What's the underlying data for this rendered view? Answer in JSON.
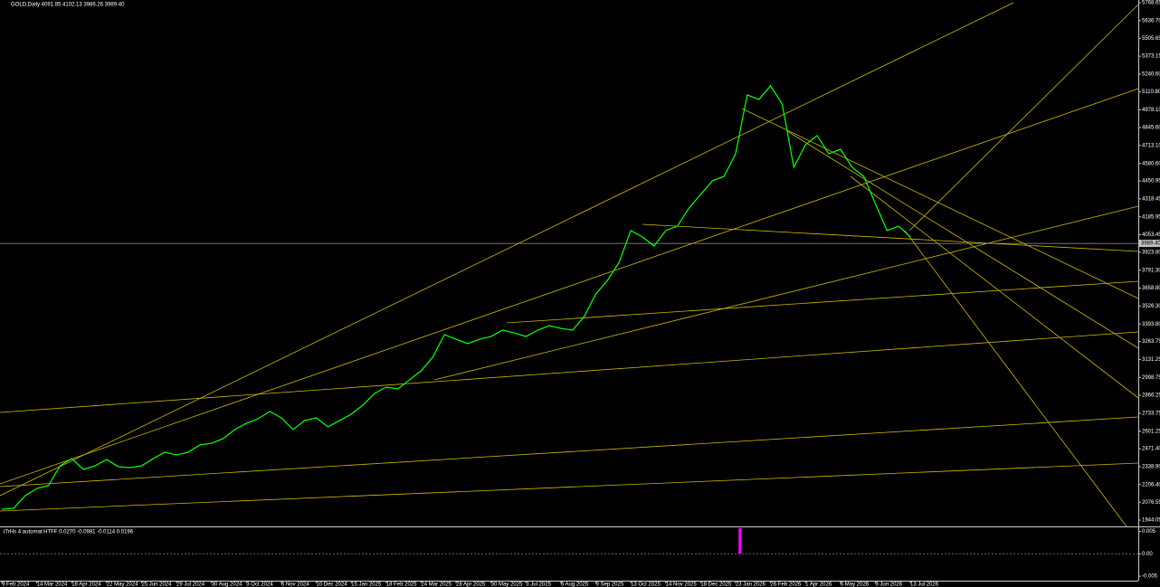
{
  "chart_data": [
    {
      "type": "line",
      "title": "GOLD,Daily  4091.85 4102.13 3986.26 3989.40",
      "color": "#00ff00",
      "xlim": [
        -1.24,
        780.6
      ],
      "ylim": [
        1897.23,
        5788.71
      ],
      "x": [
        0,
        8,
        16,
        24,
        32,
        40,
        48,
        56,
        64,
        72,
        80,
        88,
        96,
        104,
        112,
        120,
        128,
        136,
        144,
        152,
        160,
        168,
        176,
        184,
        192,
        200,
        208,
        216,
        224,
        232,
        240,
        248,
        256,
        264,
        272,
        280,
        288,
        296,
        304,
        312,
        320,
        328,
        336,
        344,
        352,
        360,
        368,
        376,
        384,
        392,
        400,
        408,
        416,
        424,
        432,
        440,
        448,
        456,
        464,
        472,
        480,
        488,
        496,
        504,
        512,
        520,
        528,
        536,
        544,
        552,
        560,
        568,
        576,
        584,
        592,
        600,
        608,
        616,
        624
      ],
      "values": [
        2024,
        2031,
        2124,
        2178,
        2198,
        2345,
        2399,
        2318,
        2345,
        2392,
        2338,
        2332,
        2345,
        2399,
        2446,
        2425,
        2446,
        2499,
        2512,
        2546,
        2613,
        2660,
        2693,
        2747,
        2700,
        2613,
        2680,
        2700,
        2633,
        2680,
        2727,
        2794,
        2880,
        2927,
        2914,
        2981,
        3048,
        3148,
        3315,
        3281,
        3248,
        3281,
        3301,
        3348,
        3328,
        3301,
        3348,
        3381,
        3361,
        3348,
        3448,
        3616,
        3716,
        3850,
        4084,
        4037,
        3970,
        4084,
        4117,
        4251,
        4351,
        4451,
        4485,
        4652,
        5087,
        5053,
        5154,
        5020,
        4552,
        4719,
        4786,
        4652,
        4686,
        4552,
        4485,
        4284,
        4084,
        4117,
        4037
      ],
      "current_price": {
        "value": 3989.4,
        "label": "3989.40"
      },
      "yticks": [
        5768.65,
        {
          "value": 5636.7,
          "label": "5636.70"
        },
        5505.65,
        5373.15,
        {
          "value": 5240.6,
          "label": "5240.60"
        },
        {
          "value": 5110.8,
          "label": "5110.80"
        },
        {
          "value": 4978.1,
          "label": "4978.10"
        },
        {
          "value": 4845.6,
          "label": "4845.60"
        },
        {
          "value": 4713.1,
          "label": "4713.10"
        },
        {
          "value": 4580.6,
          "label": "4580.60"
        },
        4450.95,
        4318.45,
        4185.95,
        4053.45,
        {
          "value": 3923.8,
          "label": "3923.80"
        },
        {
          "value": 3791.3,
          "label": "3791.30"
        },
        {
          "value": 3658.8,
          "label": "3658.80"
        },
        {
          "value": 3526.3,
          "label": "3526.30"
        },
        {
          "value": 3393.8,
          "label": "3393.80"
        },
        3263.75,
        3131.25,
        2998.75,
        2866.25,
        2733.75,
        2601.25,
        {
          "value": 2471.4,
          "label": "2471.40"
        },
        {
          "value": 2338.9,
          "label": "2338.90"
        },
        {
          "value": 2206.4,
          "label": "2206.40"
        },
        2076.55,
        1944.05
      ],
      "xticks": [
        {
          "value": 0,
          "label": "9 Feb 2024"
        },
        {
          "value": 24,
          "label": "14 Mar 2024"
        },
        {
          "value": 48,
          "label": "18 Apr 2024"
        },
        {
          "value": 72,
          "label": "22 May 2024"
        },
        {
          "value": 96,
          "label": "25 Jun 2024"
        },
        {
          "value": 120,
          "label": "29 Jul 2024"
        },
        {
          "value": 144,
          "label": "30 Aug 2024"
        },
        {
          "value": 168,
          "label": "3 Oct 2024"
        },
        {
          "value": 192,
          "label": "6 Nov 2024"
        },
        {
          "value": 216,
          "label": "10 Dec 2024"
        },
        {
          "value": 240,
          "label": "15 Jan 2025"
        },
        {
          "value": 264,
          "label": "18 Feb 2025"
        },
        {
          "value": 288,
          "label": "24 Mar 2025"
        },
        {
          "value": 312,
          "label": "28 Apr 2025"
        },
        {
          "value": 336,
          "label": "30 May 2025"
        },
        {
          "value": 360,
          "label": "3 Jul 2025"
        },
        {
          "value": 384,
          "label": "6 Aug 2025"
        },
        {
          "value": 408,
          "label": "9 Sep 2025"
        },
        {
          "value": 432,
          "label": "13 Oct 2025"
        },
        {
          "value": 456,
          "label": "14 Nov 2025"
        },
        {
          "value": 480,
          "label": "18 Dec 2025"
        },
        {
          "value": 504,
          "label": "23 Jan 2026"
        },
        {
          "value": 528,
          "label": "26 Feb 2026"
        },
        {
          "value": 552,
          "label": "1 Apr 2026"
        },
        {
          "value": 576,
          "label": "6 May 2026"
        },
        {
          "value": 600,
          "label": "9 Jun 2026"
        },
        {
          "value": 624,
          "label": "13 Jul 2026"
        }
      ]
    },
    {
      "type": "bar",
      "title": "iTrHs 4 automat HTFF  0.0270 -0.0981 -0.0114 0.0196",
      "color": "#ff00ff",
      "xlim": [
        -1.24,
        780.6
      ],
      "ylim": [
        -0.0058,
        0.0057
      ],
      "x": [
        507
      ],
      "values": [
        0.0057
      ],
      "yticks": [
        0.005,
        {
          "value": 0,
          "label": "0.00"
        },
        -0.005
      ]
    }
  ]
}
